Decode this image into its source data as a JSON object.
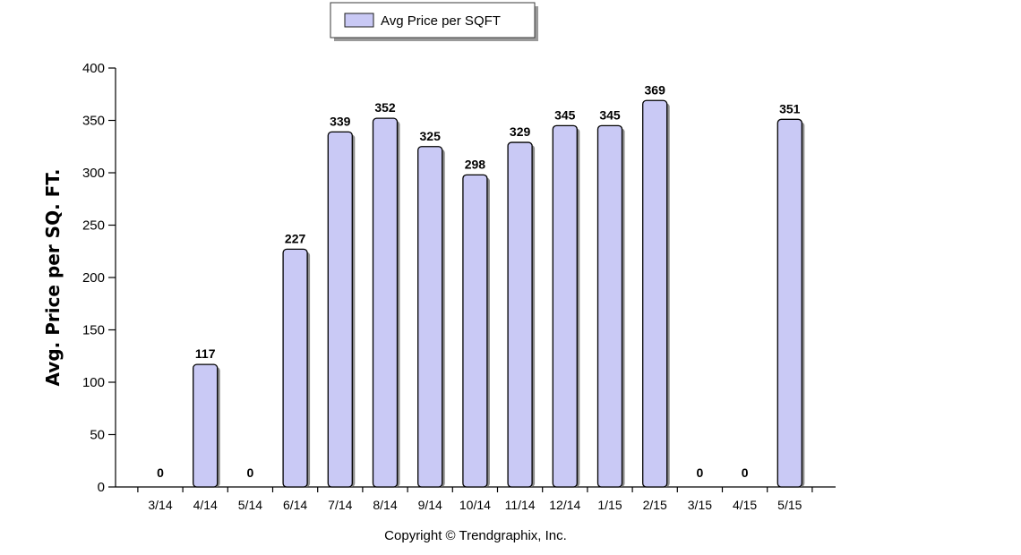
{
  "legend": {
    "label": "Avg Price per SQFT"
  },
  "footer": {
    "copyright": "Copyright © Trendgraphix, Inc."
  },
  "colors": {
    "bar_fill": "#c9c9f5",
    "bar_stroke": "#000000",
    "shadow": "#8c8c8c"
  },
  "chart_data": {
    "type": "bar",
    "title": "",
    "xlabel": "",
    "ylabel": "Avg. Price per SQ. FT.",
    "ylim": [
      0,
      400
    ],
    "yticks": [
      0,
      50,
      100,
      150,
      200,
      250,
      300,
      350,
      400
    ],
    "categories": [
      "3/14",
      "4/14",
      "5/14",
      "6/14",
      "7/14",
      "8/14",
      "9/14",
      "10/14",
      "11/14",
      "12/14",
      "1/15",
      "2/15",
      "3/15",
      "4/15",
      "5/15"
    ],
    "series": [
      {
        "name": "Avg Price per SQFT",
        "values": [
          0,
          117,
          0,
          227,
          339,
          352,
          325,
          298,
          329,
          345,
          345,
          369,
          0,
          0,
          351
        ]
      }
    ],
    "data_labels": true,
    "grid": false,
    "legend_position": "top-center"
  }
}
